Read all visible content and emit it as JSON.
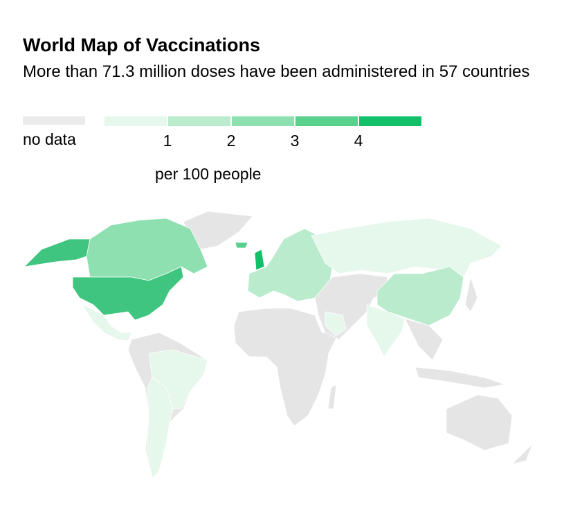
{
  "title": "World Map of Vaccinations",
  "subtitle": "More than 71.3 million doses have been administered in 57 countries",
  "legend": {
    "no_data_label": "no data",
    "no_data_color": "#ebebeb",
    "bins": [
      {
        "color": "#e6f7ec"
      },
      {
        "color": "#b9ebcc"
      },
      {
        "color": "#8fe0b0"
      },
      {
        "color": "#5ad08d"
      },
      {
        "color": "#12c06a"
      }
    ],
    "ticks": [
      "1",
      "2",
      "3",
      "4"
    ],
    "unit": "per 100 people"
  }
}
